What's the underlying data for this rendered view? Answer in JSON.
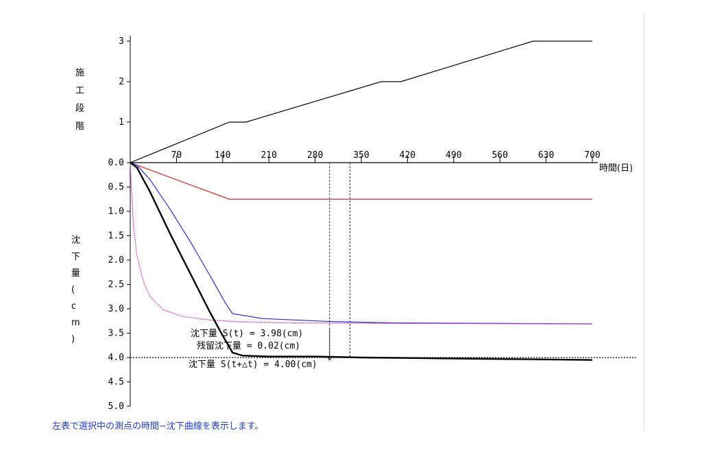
{
  "caption": "左表で選択中の測点の時間−沈下曲線を表示します。",
  "colors": {
    "axis": "#000000",
    "stage_line": "#000000",
    "red_curve": "#d42a2a",
    "blue_curve": "#2a2ad8",
    "magenta_curve": "#d040c8",
    "measured": "#000000",
    "caption": "#1f3bd8"
  },
  "chart_data": [
    {
      "type": "line",
      "ylabel": "施工段階",
      "xlim": [
        0,
        700
      ],
      "ylim": [
        0,
        3
      ],
      "yticks": [
        "0.0",
        "1",
        "2",
        "3"
      ],
      "series": [
        {
          "x": [
            0,
            150,
            175,
            380,
            410,
            610,
            700
          ],
          "y": [
            0,
            1,
            1,
            2,
            2,
            3,
            3
          ]
        }
      ]
    },
    {
      "type": "line",
      "xlabel": "時間(日)",
      "ylabel": "沈下量(cm)",
      "xlim": [
        0,
        700
      ],
      "ylim": [
        0,
        5
      ],
      "xticks": [
        "70",
        "140",
        "210",
        "280",
        "350",
        "420",
        "490",
        "560",
        "630",
        "700"
      ],
      "yticks": [
        "0.5",
        "1.0",
        "1.5",
        "2.0",
        "2.5",
        "3.0",
        "3.5",
        "4.0",
        "4.5",
        "5.0"
      ],
      "series": [
        {
          "color": "red",
          "x": [
            0,
            150,
            700
          ],
          "y": [
            0,
            0.75,
            0.75
          ]
        },
        {
          "color": "blue",
          "x": [
            0,
            10,
            30,
            60,
            90,
            120,
            145,
            155,
            200,
            300,
            400,
            700
          ],
          "y": [
            0,
            0.05,
            0.35,
            0.95,
            1.6,
            2.3,
            2.9,
            3.1,
            3.2,
            3.26,
            3.29,
            3.31
          ]
        },
        {
          "color": "magenta",
          "x": [
            0,
            2,
            5,
            10,
            20,
            30,
            50,
            80,
            120,
            170,
            250,
            400,
            700
          ],
          "y": [
            0,
            0.6,
            1.3,
            1.9,
            2.45,
            2.75,
            3.02,
            3.16,
            3.23,
            3.27,
            3.29,
            3.3,
            3.31
          ]
        },
        {
          "color": "black",
          "x": [
            0,
            10,
            30,
            60,
            90,
            120,
            140,
            155,
            170,
            210,
            280,
            350,
            420,
            560,
            700
          ],
          "y": [
            0,
            0.1,
            0.6,
            1.45,
            2.25,
            3.05,
            3.55,
            3.9,
            3.96,
            3.98,
            3.98,
            4.0,
            4.01,
            4.03,
            4.05
          ]
        }
      ],
      "reference_line_y": 4.0,
      "marker_lines_x": [
        302,
        333
      ],
      "annotations": [
        "沈下量 S(t) = 3.98(cm)",
        "残留沈下量 = 0.02(cm)",
        "沈下量 S(t+△t) = 4.00(cm)"
      ]
    }
  ]
}
